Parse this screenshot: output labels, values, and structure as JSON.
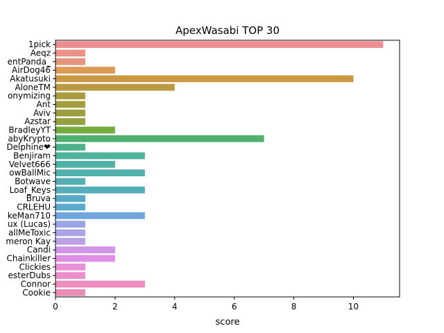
{
  "chart_data": {
    "type": "bar",
    "orientation": "horizontal",
    "title": "ApexWasabi TOP 30",
    "xlabel": "score",
    "ylabel": "",
    "xlim": [
      0,
      11.55
    ],
    "xticks": [
      0,
      2,
      4,
      6,
      8,
      10
    ],
    "grid": false,
    "legend": "none",
    "categories": [
      "1pick",
      "Aeqz",
      "entPanda_",
      "AirDog46",
      "Akatusuki",
      "AloneTM",
      "onymizing",
      "Ant",
      "Aviv",
      "Azstar",
      "BradleyYT",
      "abyKrypto",
      "Delphine❤",
      "Benjiram",
      "Velvet666",
      "owBallMic",
      "Botwave",
      "Loaf_Keys",
      "Bruva",
      "CRLEHU",
      "keMan710",
      "ux (Lucas)",
      "allMeToxic",
      "meron Kay",
      "Candi",
      "Chainkiller",
      "Clickies",
      "esterDubs",
      "Connor",
      "Cookie"
    ],
    "values": [
      11,
      1,
      1,
      2,
      10,
      4,
      1,
      1,
      1,
      1,
      2,
      7,
      1,
      3,
      2,
      3,
      1,
      3,
      1,
      1,
      3,
      1,
      1,
      1,
      2,
      2,
      1,
      1,
      3,
      1
    ],
    "colors": [
      "#ea8e91",
      "#ea9286",
      "#e5957b",
      "#dc9a52",
      "#c89845",
      "#bc9a42",
      "#ad9c3f",
      "#a39d3f",
      "#9c9e3f",
      "#93a03f",
      "#74ac3f",
      "#4fb070",
      "#4db28a",
      "#4fb29a",
      "#50b1a6",
      "#52b0ac",
      "#53afb4",
      "#55adbb",
      "#58aac7",
      "#5ba9cd",
      "#71a6dc",
      "#9aa6e4",
      "#aba4e6",
      "#b9a0e7",
      "#d195e5",
      "#df8fe5",
      "#e98fd8",
      "#eb8fcc",
      "#eb8ebf",
      "#ea8db6"
    ]
  }
}
